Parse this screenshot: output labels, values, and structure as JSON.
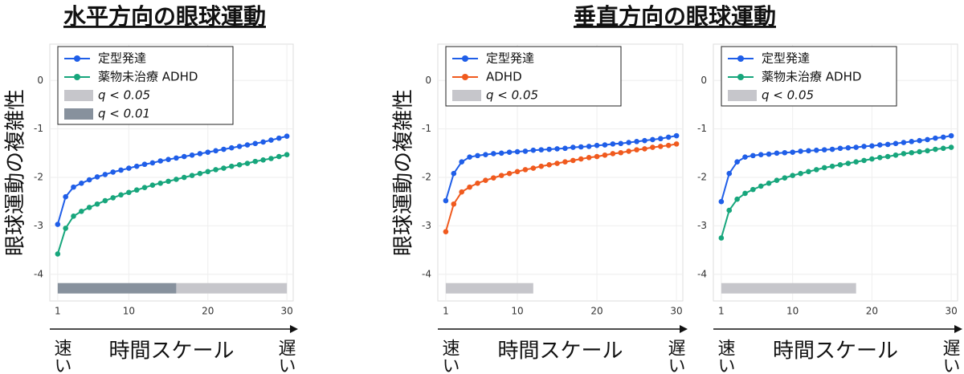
{
  "headings": [
    {
      "text": "水平方向の眼球運動"
    },
    {
      "text": "垂直方向の眼球運動"
    }
  ],
  "axis_labels": {
    "ylabel": "眼球運動の複雑性",
    "xlabel": "時間スケール",
    "fast": "速い",
    "slow": "遅い"
  },
  "chart_data": [
    {
      "type": "line",
      "x": [
        1,
        2,
        3,
        4,
        5,
        6,
        7,
        8,
        9,
        10,
        11,
        12,
        13,
        14,
        15,
        16,
        17,
        18,
        19,
        20,
        21,
        22,
        23,
        24,
        25,
        26,
        27,
        28,
        29,
        30
      ],
      "xlim": [
        0,
        30.8
      ],
      "ylim": [
        -4.55,
        0.75
      ],
      "xticks": [
        1,
        10,
        20,
        30
      ],
      "yticks": [
        0,
        -1,
        -2,
        -3,
        -4
      ],
      "grid": true,
      "series": [
        {
          "name": "定型発達",
          "color": "#1f5ee8",
          "values": [
            -2.97,
            -2.4,
            -2.2,
            -2.12,
            -2.05,
            -1.99,
            -1.94,
            -1.89,
            -1.85,
            -1.81,
            -1.77,
            -1.73,
            -1.7,
            -1.66,
            -1.63,
            -1.6,
            -1.57,
            -1.54,
            -1.51,
            -1.48,
            -1.45,
            -1.42,
            -1.39,
            -1.36,
            -1.33,
            -1.3,
            -1.27,
            -1.23,
            -1.19,
            -1.15
          ]
        },
        {
          "name": "薬物未治療 ADHD",
          "color": "#17a67c",
          "values": [
            -3.58,
            -3.05,
            -2.8,
            -2.7,
            -2.62,
            -2.55,
            -2.48,
            -2.42,
            -2.36,
            -2.31,
            -2.26,
            -2.21,
            -2.16,
            -2.12,
            -2.08,
            -2.04,
            -2.0,
            -1.96,
            -1.92,
            -1.88,
            -1.84,
            -1.81,
            -1.77,
            -1.74,
            -1.71,
            -1.67,
            -1.64,
            -1.61,
            -1.57,
            -1.53
          ]
        }
      ],
      "regions": [
        {
          "label": "q < 0.05",
          "color": "#c6c6cb",
          "x": [
            16,
            30
          ]
        },
        {
          "label": "q < 0.01",
          "color": "#87919d",
          "x": [
            1,
            16
          ]
        }
      ]
    },
    {
      "type": "line",
      "x": [
        1,
        2,
        3,
        4,
        5,
        6,
        7,
        8,
        9,
        10,
        11,
        12,
        13,
        14,
        15,
        16,
        17,
        18,
        19,
        20,
        21,
        22,
        23,
        24,
        25,
        26,
        27,
        28,
        29,
        30
      ],
      "xlim": [
        0,
        30.8
      ],
      "ylim": [
        -4.55,
        0.75
      ],
      "xticks": [
        1,
        10,
        20,
        30
      ],
      "yticks": [
        0,
        -1,
        -2,
        -3,
        -4
      ],
      "grid": true,
      "series": [
        {
          "name": "定型発達",
          "color": "#1f5ee8",
          "values": [
            -2.48,
            -1.92,
            -1.68,
            -1.58,
            -1.55,
            -1.53,
            -1.51,
            -1.5,
            -1.48,
            -1.47,
            -1.46,
            -1.44,
            -1.43,
            -1.42,
            -1.41,
            -1.4,
            -1.38,
            -1.37,
            -1.36,
            -1.34,
            -1.33,
            -1.31,
            -1.3,
            -1.28,
            -1.26,
            -1.24,
            -1.22,
            -1.2,
            -1.17,
            -1.14
          ]
        },
        {
          "name": "ADHD",
          "color": "#f05a1e",
          "values": [
            -3.12,
            -2.55,
            -2.3,
            -2.2,
            -2.12,
            -2.06,
            -2.01,
            -1.96,
            -1.92,
            -1.88,
            -1.84,
            -1.81,
            -1.77,
            -1.74,
            -1.71,
            -1.68,
            -1.65,
            -1.62,
            -1.59,
            -1.57,
            -1.54,
            -1.51,
            -1.49,
            -1.46,
            -1.43,
            -1.41,
            -1.38,
            -1.36,
            -1.34,
            -1.31
          ]
        }
      ],
      "regions": [
        {
          "label": "q < 0.05",
          "color": "#c6c6cb",
          "x": [
            1,
            12
          ]
        }
      ]
    },
    {
      "type": "line",
      "x": [
        1,
        2,
        3,
        4,
        5,
        6,
        7,
        8,
        9,
        10,
        11,
        12,
        13,
        14,
        15,
        16,
        17,
        18,
        19,
        20,
        21,
        22,
        23,
        24,
        25,
        26,
        27,
        28,
        29,
        30
      ],
      "xlim": [
        0,
        30.8
      ],
      "ylim": [
        -4.55,
        0.75
      ],
      "xticks": [
        1,
        10,
        20,
        30
      ],
      "yticks": [
        0,
        -1,
        -2,
        -3,
        -4
      ],
      "grid": true,
      "series": [
        {
          "name": "定型発達",
          "color": "#1f5ee8",
          "values": [
            -2.5,
            -1.92,
            -1.68,
            -1.58,
            -1.55,
            -1.53,
            -1.52,
            -1.5,
            -1.49,
            -1.48,
            -1.46,
            -1.45,
            -1.44,
            -1.43,
            -1.42,
            -1.4,
            -1.39,
            -1.38,
            -1.36,
            -1.35,
            -1.33,
            -1.32,
            -1.3,
            -1.28,
            -1.26,
            -1.24,
            -1.22,
            -1.19,
            -1.17,
            -1.14
          ]
        },
        {
          "name": "薬物未治療 ADHD",
          "color": "#17a67c",
          "values": [
            -3.25,
            -2.68,
            -2.45,
            -2.33,
            -2.25,
            -2.18,
            -2.12,
            -2.06,
            -2.01,
            -1.96,
            -1.92,
            -1.88,
            -1.84,
            -1.8,
            -1.77,
            -1.74,
            -1.71,
            -1.68,
            -1.65,
            -1.62,
            -1.59,
            -1.57,
            -1.54,
            -1.51,
            -1.49,
            -1.47,
            -1.45,
            -1.42,
            -1.4,
            -1.38
          ]
        }
      ],
      "regions": [
        {
          "label": "q < 0.05",
          "color": "#c6c6cb",
          "x": [
            1,
            18
          ]
        }
      ]
    }
  ]
}
